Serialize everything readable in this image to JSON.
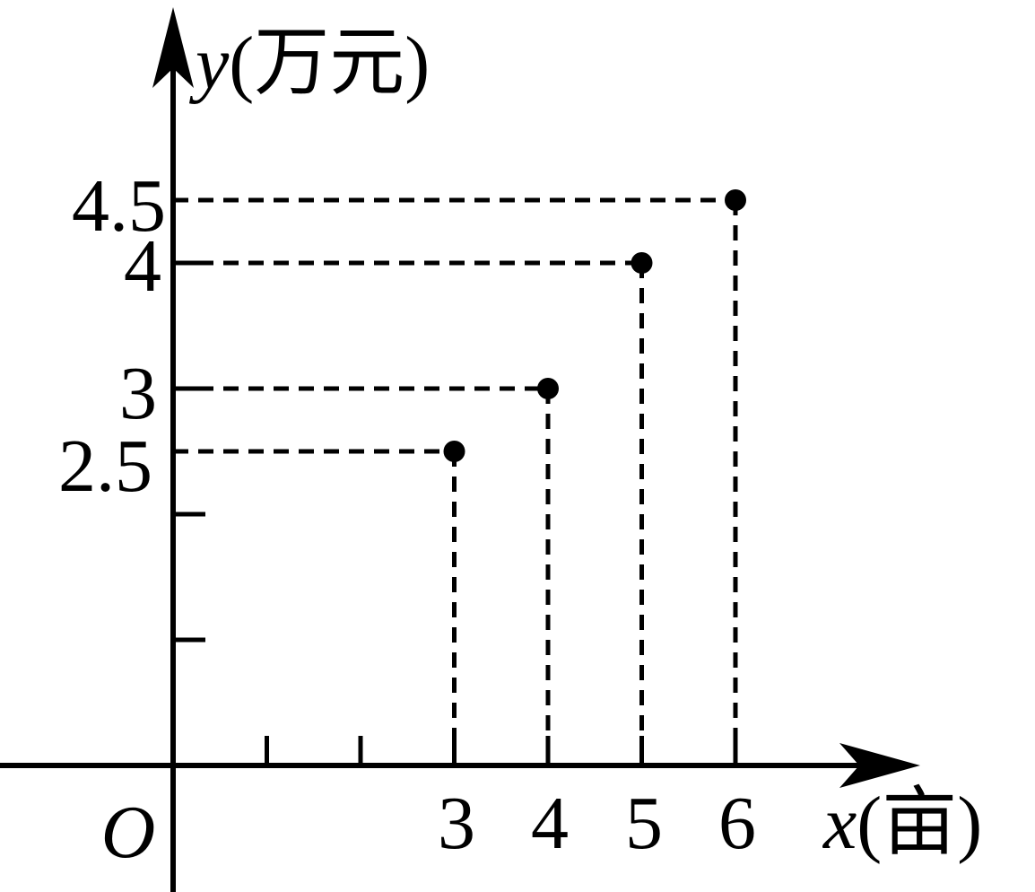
{
  "chart_data": {
    "type": "scatter",
    "x_label": "x",
    "x_unit": "(亩)",
    "y_label": "y",
    "y_unit": "(万元)",
    "origin_label": "O",
    "points": [
      {
        "x": 3,
        "y": 2.5
      },
      {
        "x": 4,
        "y": 3
      },
      {
        "x": 5,
        "y": 4
      },
      {
        "x": 6,
        "y": 4.5
      }
    ],
    "x_tick_labels": [
      "3",
      "4",
      "5",
      "6"
    ],
    "y_tick_labels": [
      "2.5",
      "3",
      "4",
      "4.5"
    ],
    "x_range": [
      0,
      7
    ],
    "y_range": [
      0,
      5
    ],
    "grid": false,
    "guide_lines": "dashed",
    "color": "#000000"
  }
}
